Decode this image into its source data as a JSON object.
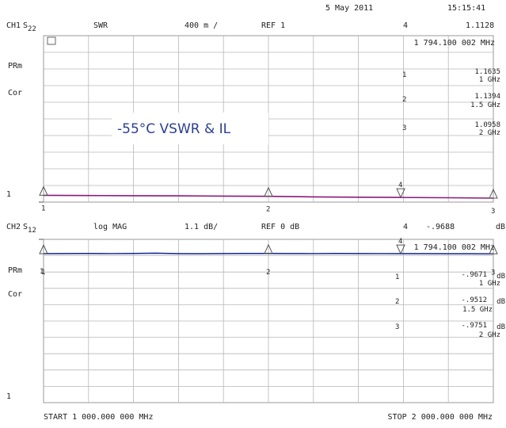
{
  "header": {
    "date": "5 May 2011",
    "time": "15:15:41"
  },
  "annotation": "-55°C VSWR & IL",
  "colors": {
    "ch1_trace": "#8a1a7a",
    "ch2_trace": "#1f2f9a",
    "grid": "#b8b8b8",
    "annotation": "#2b3f8f"
  },
  "channel1": {
    "label": "CH1",
    "param": "S",
    "param_sub": "22",
    "format": "SWR",
    "scale": "400 m /",
    "ref": "REF 1",
    "ref_marker_label": "1",
    "marker_readout": {
      "index": "4",
      "value": "1.1128",
      "frequency": "1 794.100 002 MHz"
    },
    "side_labels": [
      "PRm",
      "Cor"
    ],
    "markers": [
      {
        "index": "1",
        "value": "1.1635",
        "freq": "1 GHz"
      },
      {
        "index": "2",
        "value": "1.1394",
        "freq": "1.5 GHz"
      },
      {
        "index": "3",
        "value": "1.0958",
        "freq": "2 GHz"
      }
    ]
  },
  "channel2": {
    "label": "CH2",
    "param": "S",
    "param_sub": "12",
    "format": "log MAG",
    "scale": "1.1 dB/",
    "ref": "REF 0 dB",
    "ref_marker_label": "1",
    "unit": "dB",
    "marker_readout": {
      "index": "4",
      "value": "-.9688",
      "frequency": "1 794.100 002 MHz"
    },
    "side_labels": [
      "PRm",
      "Cor"
    ],
    "markers": [
      {
        "index": "1",
        "value": "-.9671",
        "freq": "1 GHz"
      },
      {
        "index": "2",
        "value": "-.9512",
        "freq": "1.5 GHz"
      },
      {
        "index": "3",
        "value": "-.9751",
        "freq": "2 GHz"
      }
    ]
  },
  "footer": {
    "start": "START 1 000.000 000 MHz",
    "stop": "STOP 2 000.000 000 MHz"
  },
  "chart_data": [
    {
      "type": "line",
      "title": "CH1 S22 SWR",
      "x_start_mhz": 1000,
      "x_stop_mhz": 2000,
      "x": [
        1000,
        1100,
        1200,
        1300,
        1400,
        1500,
        1600,
        1700,
        1794.1,
        1900,
        2000
      ],
      "ylim": [
        1,
        5
      ],
      "ref_value": 1,
      "series": [
        {
          "values": [
            1.1635,
            1.158,
            1.154,
            1.15,
            1.145,
            1.1394,
            1.125,
            1.118,
            1.1128,
            1.104,
            1.0958
          ]
        }
      ],
      "marker_x": [
        1000,
        1500,
        2000,
        1794.1
      ]
    },
    {
      "type": "line",
      "title": "CH2 S12 log MAG",
      "x_start_mhz": 1000,
      "x_stop_mhz": 2000,
      "x": [
        1000,
        1050,
        1100,
        1150,
        1200,
        1250,
        1300,
        1350,
        1400,
        1450,
        1500,
        1550,
        1600,
        1650,
        1700,
        1750,
        1794.1,
        1850,
        1900,
        1950,
        2000
      ],
      "ylim": [
        -11,
        0
      ],
      "ref_value": 0,
      "series": [
        {
          "values": [
            -0.9671,
            -0.955,
            -0.95,
            -0.96,
            -0.952,
            -0.93,
            -0.965,
            -0.97,
            -0.958,
            -0.95,
            -0.9512,
            -0.955,
            -0.962,
            -0.95,
            -0.958,
            -0.96,
            -0.9688,
            -0.965,
            -0.97,
            -0.972,
            -0.9751
          ]
        }
      ],
      "marker_x": [
        1000,
        1500,
        2000,
        1794.1
      ]
    }
  ]
}
